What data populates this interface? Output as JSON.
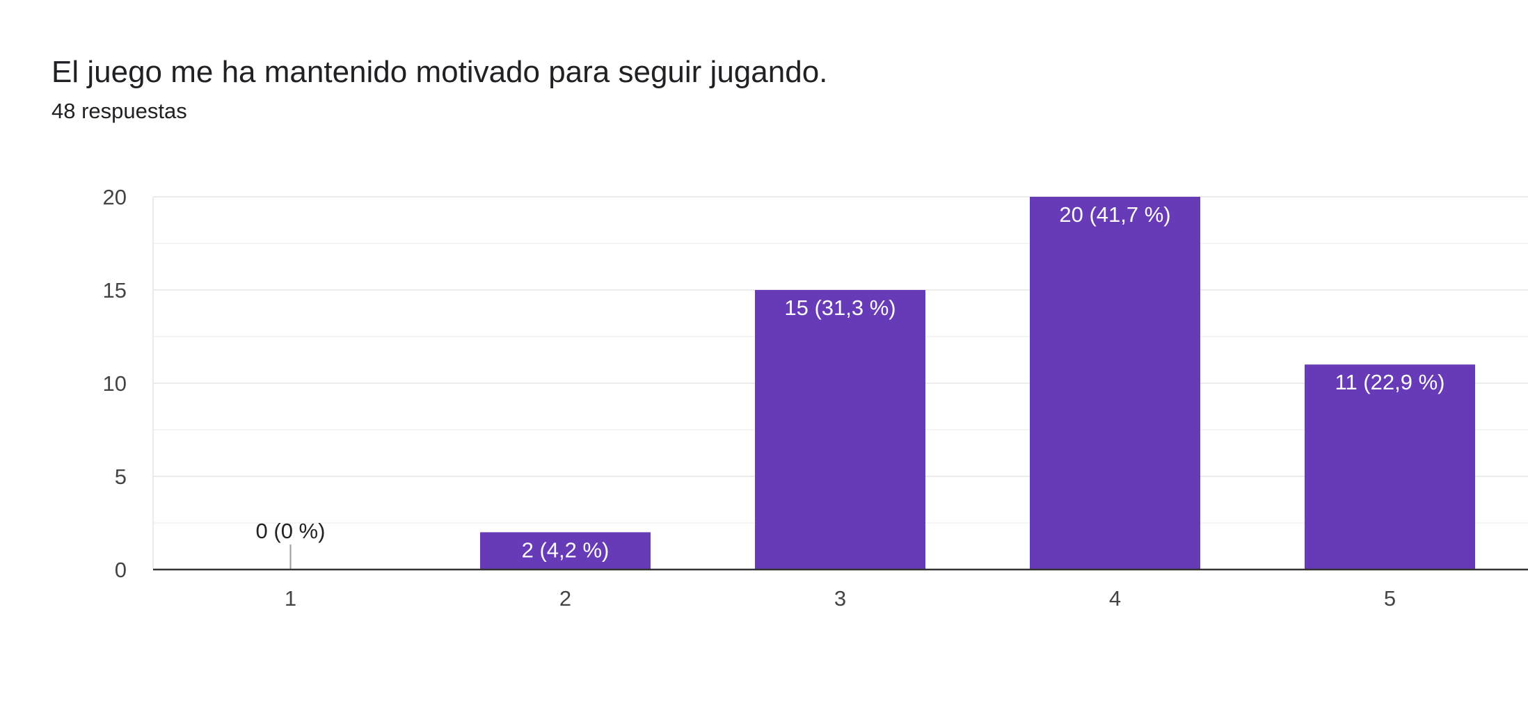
{
  "question": {
    "title": "El juego me ha mantenido motivado para seguir jugando.",
    "responses": "48 respuestas"
  },
  "colors": {
    "bar": "#673ab7",
    "grid": "#ebebeb",
    "minor_grid": "#f5f5f5",
    "axis": "#333333",
    "tick_text": "#444444",
    "data_label_inside": "#ffffff",
    "data_label_outside": "#222222",
    "zero_marker": "#999999"
  },
  "chart_data": {
    "type": "bar",
    "categories": [
      "1",
      "2",
      "3",
      "4",
      "5"
    ],
    "values": [
      0,
      2,
      15,
      20,
      11
    ],
    "data_labels": [
      "0 (0 %)",
      "2 (4,2 %)",
      "15 (31,3 %)",
      "20 (41,7 %)",
      "11 (22,9 %)"
    ],
    "y_ticks": [
      0,
      5,
      10,
      15,
      20
    ],
    "ylim": [
      0,
      20
    ],
    "grid": true,
    "legend": "none"
  }
}
